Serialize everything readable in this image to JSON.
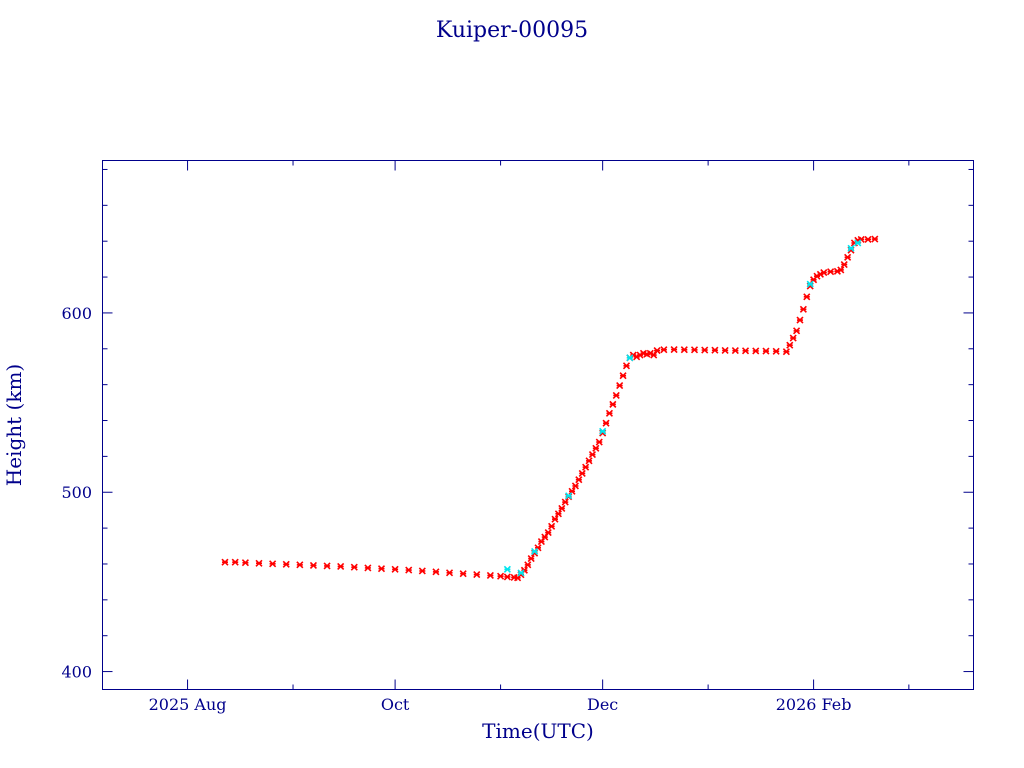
{
  "chart_data": {
    "type": "scatter",
    "title": "Kuiper-00095",
    "xlabel": "Time(UTC)",
    "ylabel": "Height (km)",
    "x_is_date": true,
    "xlim": [
      "2025-07-07",
      "2026-03-20"
    ],
    "ylim": [
      390,
      685
    ],
    "x_major_ticks": [
      {
        "date": "2025-08-01",
        "label": "2025 Aug"
      },
      {
        "date": "2025-10-01",
        "label": "Oct"
      },
      {
        "date": "2025-12-01",
        "label": "Dec"
      },
      {
        "date": "2026-02-01",
        "label": "2026 Feb"
      }
    ],
    "x_minor_ticks": [
      "2025-09-01",
      "2025-11-01",
      "2026-01-01",
      "2026-03-01"
    ],
    "y_major_ticks": [
      400,
      500,
      600
    ],
    "y_minor_ticks": [
      420,
      440,
      460,
      480,
      520,
      540,
      560,
      580,
      620,
      640,
      660,
      680
    ],
    "grid": false,
    "series": [
      {
        "color": "#ff0000",
        "marker": "x",
        "values": [
          [
            "2025-08-12",
            461
          ],
          [
            "2025-08-15",
            461
          ],
          [
            "2025-08-18",
            460.7
          ],
          [
            "2025-08-22",
            460.4
          ],
          [
            "2025-08-26",
            460.1
          ],
          [
            "2025-08-30",
            459.8
          ],
          [
            "2025-09-03",
            459.5
          ],
          [
            "2025-09-07",
            459.2
          ],
          [
            "2025-09-11",
            458.9
          ],
          [
            "2025-09-15",
            458.6
          ],
          [
            "2025-09-19",
            458.2
          ],
          [
            "2025-09-23",
            457.8
          ],
          [
            "2025-09-27",
            457.4
          ],
          [
            "2025-10-01",
            457
          ],
          [
            "2025-10-05",
            456.6
          ],
          [
            "2025-10-09",
            456.1
          ],
          [
            "2025-10-13",
            455.6
          ],
          [
            "2025-10-17",
            455.1
          ],
          [
            "2025-10-21",
            454.6
          ],
          [
            "2025-10-25",
            454.1
          ],
          [
            "2025-10-29",
            453.6
          ],
          [
            "2025-11-01",
            453.2
          ],
          [
            "2025-11-03",
            452.8
          ],
          [
            "2025-11-05",
            452.5
          ],
          [
            "2025-11-06",
            452.3
          ],
          [
            "2025-11-07",
            454
          ],
          [
            "2025-11-08",
            456.5
          ],
          [
            "2025-11-09",
            459.5
          ],
          [
            "2025-11-10",
            463
          ],
          [
            "2025-11-11",
            466
          ],
          [
            "2025-11-12",
            469
          ],
          [
            "2025-11-13",
            472.5
          ],
          [
            "2025-11-14",
            475
          ],
          [
            "2025-11-15",
            477.5
          ],
          [
            "2025-11-16",
            481
          ],
          [
            "2025-11-17",
            485
          ],
          [
            "2025-11-18",
            488
          ],
          [
            "2025-11-19",
            491
          ],
          [
            "2025-11-20",
            494.5
          ],
          [
            "2025-11-21",
            497.5
          ],
          [
            "2025-11-22",
            500.5
          ],
          [
            "2025-11-23",
            503.5
          ],
          [
            "2025-11-24",
            507
          ],
          [
            "2025-11-25",
            510.5
          ],
          [
            "2025-11-26",
            514
          ],
          [
            "2025-11-27",
            517.5
          ],
          [
            "2025-11-28",
            521
          ],
          [
            "2025-11-29",
            524.5
          ],
          [
            "2025-11-30",
            528
          ],
          [
            "2025-12-01",
            533
          ],
          [
            "2025-12-02",
            538.5
          ],
          [
            "2025-12-03",
            544
          ],
          [
            "2025-12-04",
            549
          ],
          [
            "2025-12-05",
            554
          ],
          [
            "2025-12-06",
            559.5
          ],
          [
            "2025-12-07",
            565
          ],
          [
            "2025-12-08",
            570.5
          ],
          [
            "2025-12-09",
            575
          ],
          [
            "2025-12-10",
            576.5
          ],
          [
            "2025-12-11",
            575.5
          ],
          [
            "2025-12-12",
            576.5
          ],
          [
            "2025-12-13",
            577.5
          ],
          [
            "2025-12-14",
            577
          ],
          [
            "2025-12-15",
            577.5
          ],
          [
            "2025-12-16",
            576.5
          ],
          [
            "2025-12-17",
            579
          ],
          [
            "2025-12-19",
            579.5
          ],
          [
            "2025-12-22",
            579.6
          ],
          [
            "2025-12-25",
            579.5
          ],
          [
            "2025-12-28",
            579.4
          ],
          [
            "2025-12-31",
            579.3
          ],
          [
            "2026-01-03",
            579.2
          ],
          [
            "2026-01-06",
            579.1
          ],
          [
            "2026-01-09",
            579
          ],
          [
            "2026-01-12",
            578.9
          ],
          [
            "2026-01-15",
            578.8
          ],
          [
            "2026-01-18",
            578.7
          ],
          [
            "2026-01-21",
            578.6
          ],
          [
            "2026-01-24",
            578.4
          ],
          [
            "2026-01-25",
            582
          ],
          [
            "2026-01-26",
            586
          ],
          [
            "2026-01-27",
            590
          ],
          [
            "2026-01-28",
            596
          ],
          [
            "2026-01-29",
            602
          ],
          [
            "2026-01-30",
            609
          ],
          [
            "2026-01-31",
            615
          ],
          [
            "2026-02-01",
            618.5
          ],
          [
            "2026-02-02",
            620.5
          ],
          [
            "2026-02-03",
            621.5
          ],
          [
            "2026-02-04",
            622.5
          ],
          [
            "2026-02-06",
            623
          ],
          [
            "2026-02-08",
            623.2
          ],
          [
            "2026-02-09",
            624
          ],
          [
            "2026-02-10",
            627
          ],
          [
            "2026-02-11",
            631
          ],
          [
            "2026-02-12",
            635
          ],
          [
            "2026-02-13",
            639
          ],
          [
            "2026-02-14",
            640.5
          ],
          [
            "2026-02-15",
            641
          ],
          [
            "2026-02-17",
            641
          ],
          [
            "2026-02-19",
            641.2
          ]
        ]
      },
      {
        "color": "#00e5ee",
        "marker": "x",
        "values": [
          [
            "2025-11-03",
            457
          ],
          [
            "2025-11-07",
            455
          ],
          [
            "2025-11-11",
            467
          ],
          [
            "2025-11-21",
            498
          ],
          [
            "2025-12-01",
            534
          ],
          [
            "2025-12-09",
            575
          ],
          [
            "2026-01-31",
            616
          ],
          [
            "2026-02-12",
            636
          ],
          [
            "2026-02-14",
            639
          ]
        ]
      }
    ]
  }
}
